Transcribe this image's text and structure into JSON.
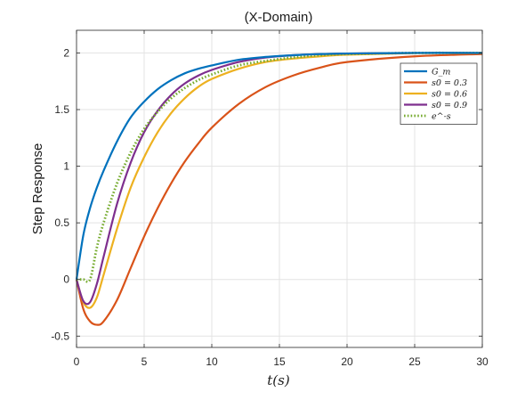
{
  "chart_data": {
    "type": "line",
    "title": "(X-Domain)",
    "xlabel": "t(s)",
    "ylabel": "Step Response",
    "xlim": [
      0,
      30
    ],
    "ylim": [
      -0.6,
      2.2
    ],
    "xticks": [
      0,
      5,
      10,
      15,
      20,
      25,
      30
    ],
    "xtick_labels": [
      "0",
      "5",
      "10",
      "15",
      "20",
      "25",
      "30"
    ],
    "yticks": [
      -0.5,
      0,
      0.5,
      1,
      1.5,
      2
    ],
    "ytick_labels": [
      "-0.5",
      "0",
      "0.5",
      "1",
      "1.5",
      "2"
    ],
    "grid": true,
    "legend_position": "top-right",
    "series": [
      {
        "name": "G_m",
        "color": "#0072BD",
        "style": "solid",
        "x": [
          0,
          0.5,
          1,
          1.5,
          2,
          3,
          4,
          5,
          6,
          7,
          8,
          9,
          10,
          12,
          14,
          16,
          18,
          20,
          25,
          30
        ],
        "y": [
          0,
          0.39,
          0.63,
          0.81,
          0.96,
          1.22,
          1.43,
          1.57,
          1.68,
          1.76,
          1.82,
          1.86,
          1.89,
          1.94,
          1.965,
          1.98,
          1.99,
          1.995,
          2.0,
          2.0
        ]
      },
      {
        "name": "s0 = 0.3",
        "color": "#D95319",
        "style": "solid",
        "x": [
          0,
          0.5,
          1,
          1.5,
          2,
          3,
          4,
          5,
          6,
          7,
          8,
          9,
          10,
          12,
          14,
          16,
          18,
          20,
          25,
          30
        ],
        "y": [
          0,
          -0.26,
          -0.37,
          -0.4,
          -0.37,
          -0.18,
          0.1,
          0.38,
          0.63,
          0.85,
          1.04,
          1.2,
          1.34,
          1.55,
          1.7,
          1.8,
          1.87,
          1.92,
          1.97,
          1.99
        ]
      },
      {
        "name": "s0 = 0.6",
        "color": "#EDB120",
        "style": "solid",
        "x": [
          0,
          0.5,
          1,
          1.5,
          2,
          3,
          4,
          5,
          6,
          7,
          8,
          9,
          10,
          12,
          14,
          16,
          18,
          20,
          25,
          30
        ],
        "y": [
          0,
          -0.2,
          -0.25,
          -0.16,
          0.04,
          0.45,
          0.81,
          1.08,
          1.3,
          1.47,
          1.6,
          1.7,
          1.77,
          1.86,
          1.92,
          1.95,
          1.97,
          1.985,
          1.998,
          2.0
        ]
      },
      {
        "name": "s0 = 0.9",
        "color": "#7E2F8E",
        "style": "solid",
        "x": [
          0,
          0.5,
          1,
          1.5,
          2,
          3,
          4,
          5,
          6,
          7,
          8,
          9,
          10,
          12,
          14,
          16,
          18,
          20,
          25,
          30
        ],
        "y": [
          0,
          -0.19,
          -0.2,
          -0.04,
          0.2,
          0.67,
          1.03,
          1.3,
          1.49,
          1.63,
          1.73,
          1.8,
          1.85,
          1.92,
          1.96,
          1.98,
          1.99,
          1.995,
          2.0,
          2.0
        ]
      },
      {
        "name": "e^-s",
        "color": "#77AC30",
        "style": "dotted",
        "x": [
          0,
          0.5,
          1,
          1.5,
          2,
          3,
          4,
          5,
          6,
          7,
          8,
          9,
          10,
          12,
          14,
          16,
          18,
          20,
          25,
          30
        ],
        "y": [
          0,
          0,
          0,
          0.28,
          0.5,
          0.85,
          1.12,
          1.33,
          1.48,
          1.6,
          1.69,
          1.76,
          1.81,
          1.89,
          1.93,
          1.96,
          1.98,
          1.99,
          2.0,
          2.0
        ]
      }
    ]
  }
}
